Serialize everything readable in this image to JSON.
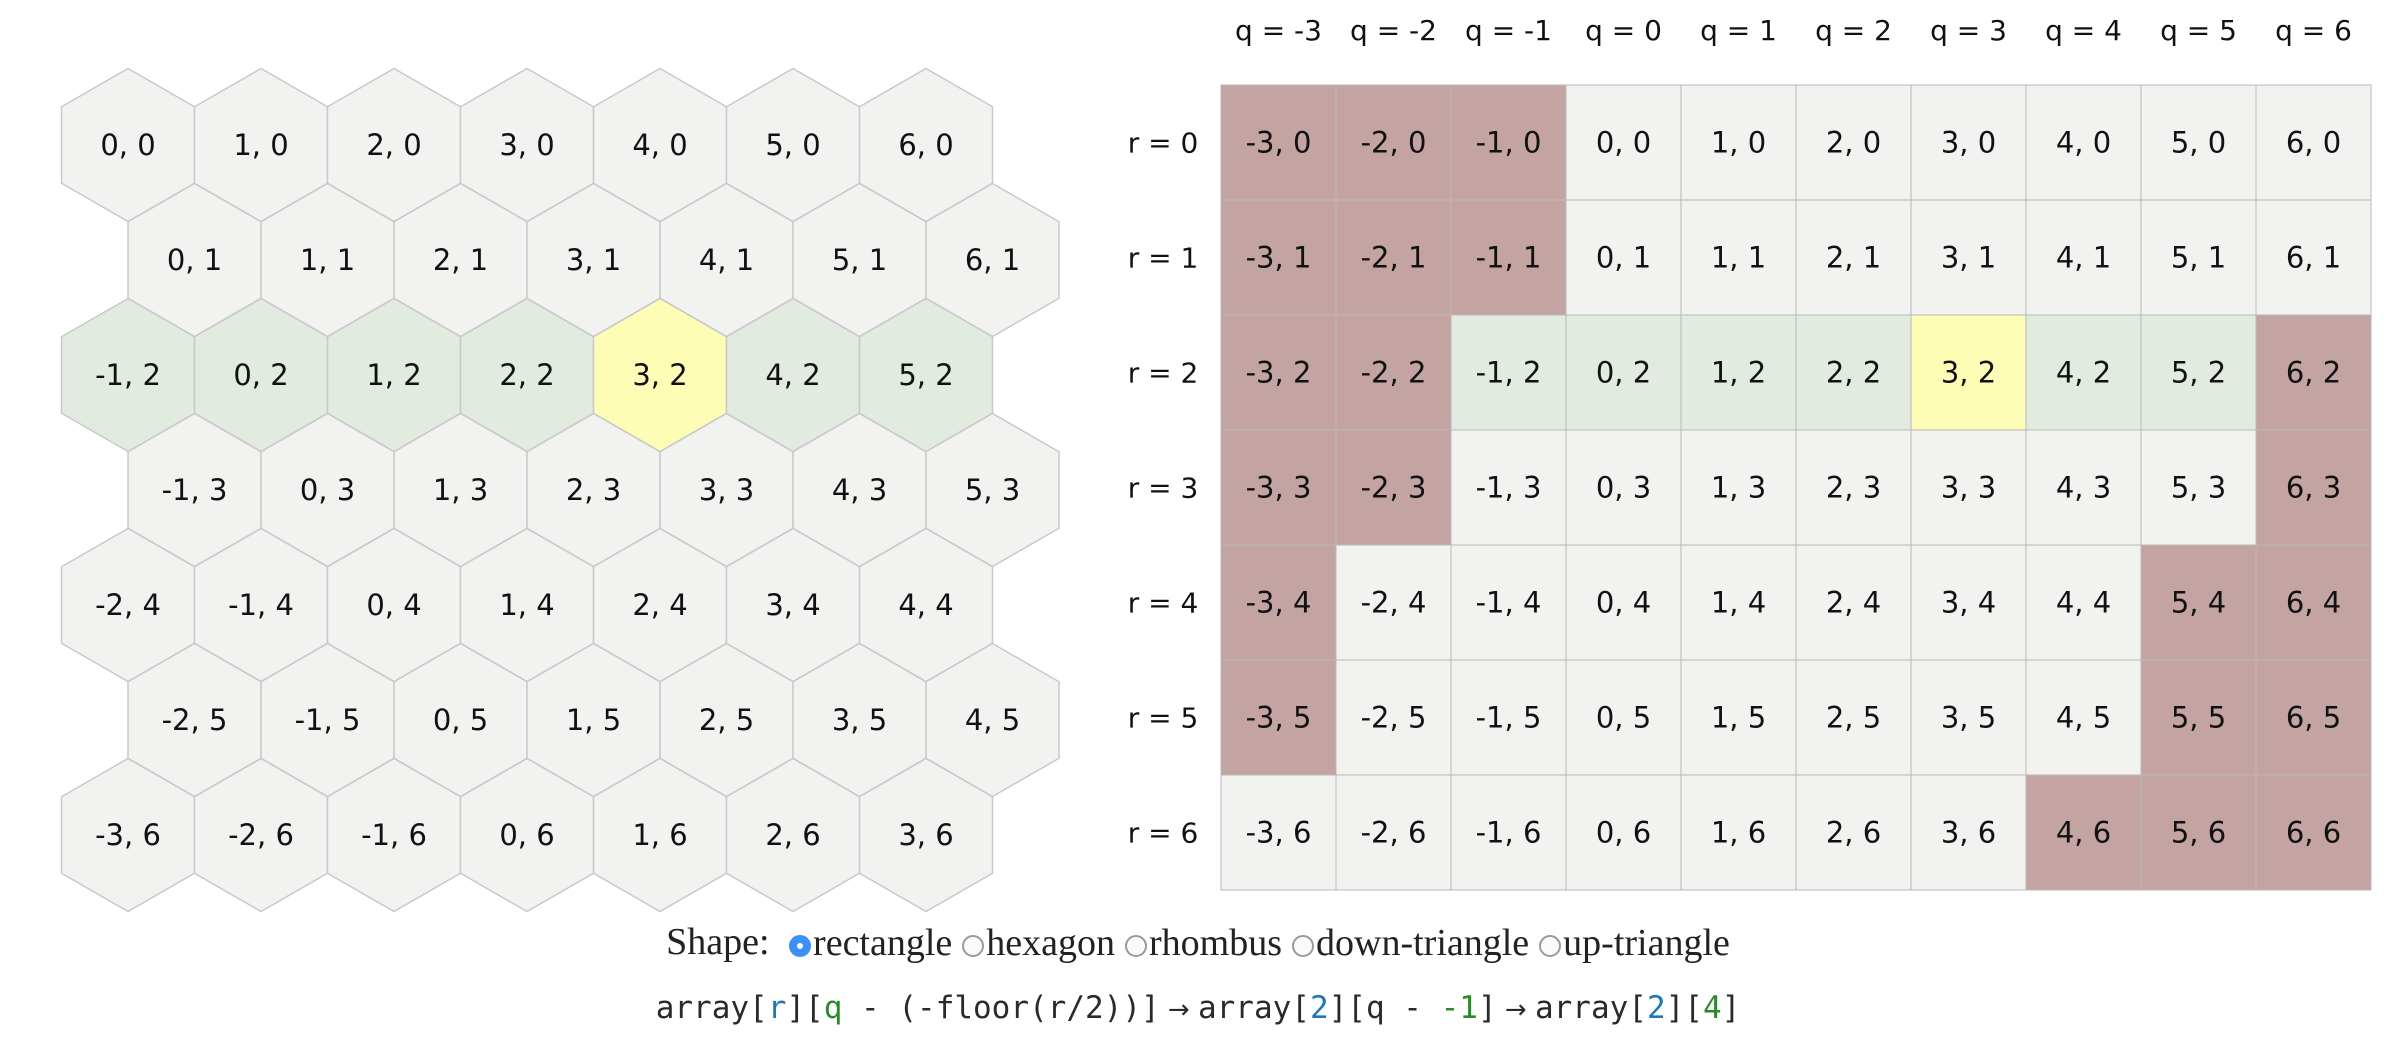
{
  "hex_grid": {
    "colors": {
      "default": "#f2f2f0",
      "row": "#e2ebe0",
      "selected": "#fefdb6",
      "stroke": "#c9c9c9"
    },
    "rows": [
      {
        "r": 0,
        "cells": [
          {
            "label": "0, 0",
            "state": "default"
          },
          {
            "label": "1, 0",
            "state": "default"
          },
          {
            "label": "2, 0",
            "state": "default"
          },
          {
            "label": "3, 0",
            "state": "default"
          },
          {
            "label": "4, 0",
            "state": "default"
          },
          {
            "label": "5, 0",
            "state": "default"
          },
          {
            "label": "6, 0",
            "state": "default"
          }
        ]
      },
      {
        "r": 1,
        "cells": [
          {
            "label": "0, 1",
            "state": "default"
          },
          {
            "label": "1, 1",
            "state": "default"
          },
          {
            "label": "2, 1",
            "state": "default"
          },
          {
            "label": "3, 1",
            "state": "default"
          },
          {
            "label": "4, 1",
            "state": "default"
          },
          {
            "label": "5, 1",
            "state": "default"
          },
          {
            "label": "6, 1",
            "state": "default"
          }
        ]
      },
      {
        "r": 2,
        "cells": [
          {
            "label": "-1, 2",
            "state": "row"
          },
          {
            "label": "0, 2",
            "state": "row"
          },
          {
            "label": "1, 2",
            "state": "row"
          },
          {
            "label": "2, 2",
            "state": "row"
          },
          {
            "label": "3, 2",
            "state": "selected"
          },
          {
            "label": "4, 2",
            "state": "row"
          },
          {
            "label": "5, 2",
            "state": "row"
          }
        ]
      },
      {
        "r": 3,
        "cells": [
          {
            "label": "-1, 3",
            "state": "default"
          },
          {
            "label": "0, 3",
            "state": "default"
          },
          {
            "label": "1, 3",
            "state": "default"
          },
          {
            "label": "2, 3",
            "state": "default"
          },
          {
            "label": "3, 3",
            "state": "default"
          },
          {
            "label": "4, 3",
            "state": "default"
          },
          {
            "label": "5, 3",
            "state": "default"
          }
        ]
      },
      {
        "r": 4,
        "cells": [
          {
            "label": "-2, 4",
            "state": "default"
          },
          {
            "label": "-1, 4",
            "state": "default"
          },
          {
            "label": "0, 4",
            "state": "default"
          },
          {
            "label": "1, 4",
            "state": "default"
          },
          {
            "label": "2, 4",
            "state": "default"
          },
          {
            "label": "3, 4",
            "state": "default"
          },
          {
            "label": "4, 4",
            "state": "default"
          }
        ]
      },
      {
        "r": 5,
        "cells": [
          {
            "label": "-2, 5",
            "state": "default"
          },
          {
            "label": "-1, 5",
            "state": "default"
          },
          {
            "label": "0, 5",
            "state": "default"
          },
          {
            "label": "1, 5",
            "state": "default"
          },
          {
            "label": "2, 5",
            "state": "default"
          },
          {
            "label": "3, 5",
            "state": "default"
          },
          {
            "label": "4, 5",
            "state": "default"
          }
        ]
      },
      {
        "r": 6,
        "cells": [
          {
            "label": "-3, 6",
            "state": "default"
          },
          {
            "label": "-2, 6",
            "state": "default"
          },
          {
            "label": "-1, 6",
            "state": "default"
          },
          {
            "label": "0, 6",
            "state": "default"
          },
          {
            "label": "1, 6",
            "state": "default"
          },
          {
            "label": "2, 6",
            "state": "default"
          },
          {
            "label": "3, 6",
            "state": "default"
          }
        ]
      }
    ]
  },
  "array_table": {
    "colors": {
      "default": "#f2f2f0",
      "row": "#e2ebe0",
      "selected": "#fefdb6",
      "unused": "#c4a3a3",
      "stroke": "#b8b8b8"
    },
    "column_headers": [
      "q = -3",
      "q = -2",
      "q = -1",
      "q = 0",
      "q = 1",
      "q = 2",
      "q = 3",
      "q = 4",
      "q = 5",
      "q = 6"
    ],
    "row_headers": [
      "r = 0",
      "r = 1",
      "r = 2",
      "r = 3",
      "r = 4",
      "r = 5",
      "r = 6"
    ],
    "rows": [
      [
        {
          "label": "-3, 0",
          "state": "unused"
        },
        {
          "label": "-2, 0",
          "state": "unused"
        },
        {
          "label": "-1, 0",
          "state": "unused"
        },
        {
          "label": "0, 0",
          "state": "default"
        },
        {
          "label": "1, 0",
          "state": "default"
        },
        {
          "label": "2, 0",
          "state": "default"
        },
        {
          "label": "3, 0",
          "state": "default"
        },
        {
          "label": "4, 0",
          "state": "default"
        },
        {
          "label": "5, 0",
          "state": "default"
        },
        {
          "label": "6, 0",
          "state": "default"
        }
      ],
      [
        {
          "label": "-3, 1",
          "state": "unused"
        },
        {
          "label": "-2, 1",
          "state": "unused"
        },
        {
          "label": "-1, 1",
          "state": "unused"
        },
        {
          "label": "0, 1",
          "state": "default"
        },
        {
          "label": "1, 1",
          "state": "default"
        },
        {
          "label": "2, 1",
          "state": "default"
        },
        {
          "label": "3, 1",
          "state": "default"
        },
        {
          "label": "4, 1",
          "state": "default"
        },
        {
          "label": "5, 1",
          "state": "default"
        },
        {
          "label": "6, 1",
          "state": "default"
        }
      ],
      [
        {
          "label": "-3, 2",
          "state": "unused"
        },
        {
          "label": "-2, 2",
          "state": "unused"
        },
        {
          "label": "-1, 2",
          "state": "row"
        },
        {
          "label": "0, 2",
          "state": "row"
        },
        {
          "label": "1, 2",
          "state": "row"
        },
        {
          "label": "2, 2",
          "state": "row"
        },
        {
          "label": "3, 2",
          "state": "selected"
        },
        {
          "label": "4, 2",
          "state": "row"
        },
        {
          "label": "5, 2",
          "state": "row"
        },
        {
          "label": "6, 2",
          "state": "unused"
        }
      ],
      [
        {
          "label": "-3, 3",
          "state": "unused"
        },
        {
          "label": "-2, 3",
          "state": "unused"
        },
        {
          "label": "-1, 3",
          "state": "default"
        },
        {
          "label": "0, 3",
          "state": "default"
        },
        {
          "label": "1, 3",
          "state": "default"
        },
        {
          "label": "2, 3",
          "state": "default"
        },
        {
          "label": "3, 3",
          "state": "default"
        },
        {
          "label": "4, 3",
          "state": "default"
        },
        {
          "label": "5, 3",
          "state": "default"
        },
        {
          "label": "6, 3",
          "state": "unused"
        }
      ],
      [
        {
          "label": "-3, 4",
          "state": "unused"
        },
        {
          "label": "-2, 4",
          "state": "default"
        },
        {
          "label": "-1, 4",
          "state": "default"
        },
        {
          "label": "0, 4",
          "state": "default"
        },
        {
          "label": "1, 4",
          "state": "default"
        },
        {
          "label": "2, 4",
          "state": "default"
        },
        {
          "label": "3, 4",
          "state": "default"
        },
        {
          "label": "4, 4",
          "state": "default"
        },
        {
          "label": "5, 4",
          "state": "unused"
        },
        {
          "label": "6, 4",
          "state": "unused"
        }
      ],
      [
        {
          "label": "-3, 5",
          "state": "unused"
        },
        {
          "label": "-2, 5",
          "state": "default"
        },
        {
          "label": "-1, 5",
          "state": "default"
        },
        {
          "label": "0, 5",
          "state": "default"
        },
        {
          "label": "1, 5",
          "state": "default"
        },
        {
          "label": "2, 5",
          "state": "default"
        },
        {
          "label": "3, 5",
          "state": "default"
        },
        {
          "label": "4, 5",
          "state": "default"
        },
        {
          "label": "5, 5",
          "state": "unused"
        },
        {
          "label": "6, 5",
          "state": "unused"
        }
      ],
      [
        {
          "label": "-3, 6",
          "state": "default"
        },
        {
          "label": "-2, 6",
          "state": "default"
        },
        {
          "label": "-1, 6",
          "state": "default"
        },
        {
          "label": "0, 6",
          "state": "default"
        },
        {
          "label": "1, 6",
          "state": "default"
        },
        {
          "label": "2, 6",
          "state": "default"
        },
        {
          "label": "3, 6",
          "state": "default"
        },
        {
          "label": "4, 6",
          "state": "unused"
        },
        {
          "label": "5, 6",
          "state": "unused"
        },
        {
          "label": "6, 6",
          "state": "unused"
        }
      ]
    ]
  },
  "controls": {
    "shape_label": "Shape:",
    "options": [
      {
        "label": "rectangle",
        "checked": true
      },
      {
        "label": "hexagon",
        "checked": false
      },
      {
        "label": "rhombus",
        "checked": false
      },
      {
        "label": "down-triangle",
        "checked": false
      },
      {
        "label": "up-triangle",
        "checked": false
      }
    ],
    "accent_color": "#3b8ff5"
  },
  "formula": {
    "p1": "array[",
    "p2": "r",
    "p3": "][",
    "p4": "q",
    "p5": " - (-floor(r/2))]",
    "arrow1": " → ",
    "p6": "array[",
    "p7": "2",
    "p8": "][q - ",
    "p9": "-1",
    "p10": "]",
    "arrow2": " → ",
    "p11": "array[",
    "p12": "2",
    "p13": "][",
    "p14": "4",
    "p15": "]"
  }
}
